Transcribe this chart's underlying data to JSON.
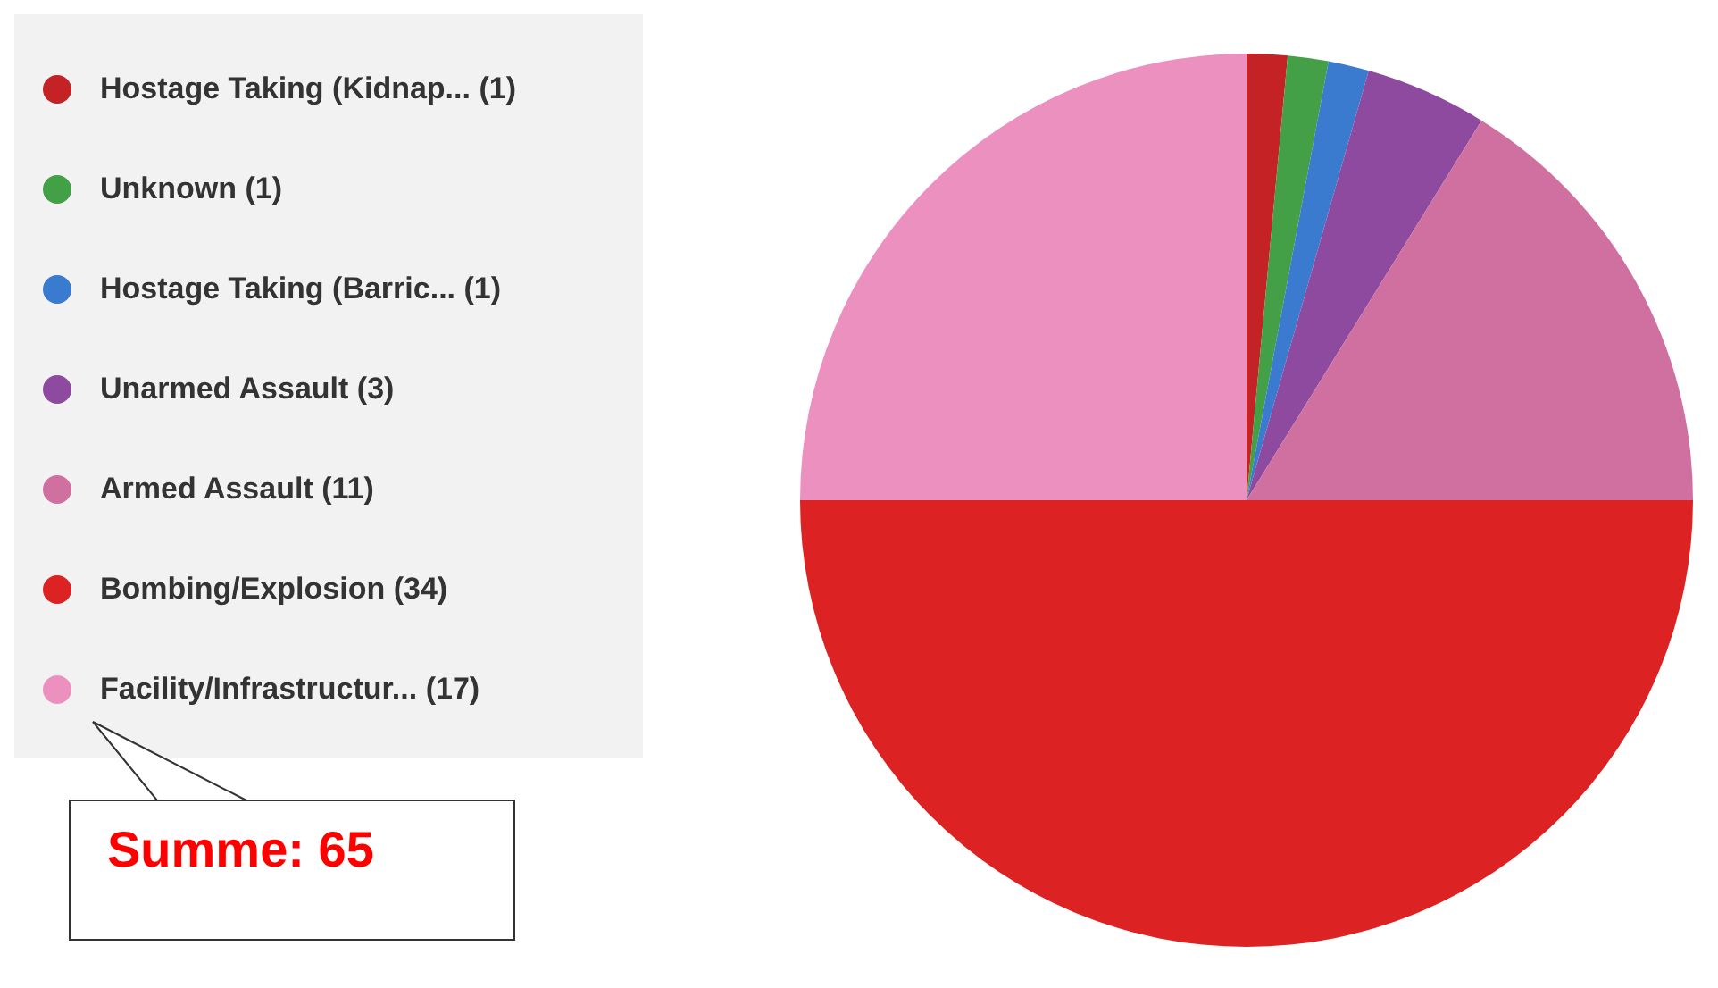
{
  "chart_data": {
    "type": "pie",
    "categories": [
      "Hostage Taking (Kidnap...",
      "Unknown",
      "Hostage Taking (Barric...",
      "Unarmed Assault",
      "Armed Assault",
      "Bombing/Explosion",
      "Facility/Infrastructur..."
    ],
    "values": [
      1,
      1,
      1,
      3,
      11,
      34,
      17
    ],
    "value_labels": [
      "(1)",
      "(1)",
      "(1)",
      "(3)",
      "(11)",
      "(34)",
      "(17)"
    ],
    "colors": [
      "#c42224",
      "#43a047",
      "#3a7bd0",
      "#8e4a9e",
      "#d070a0",
      "#dc2222",
      "#ec90c0"
    ],
    "legend": "left",
    "annotations": [
      "Summe: 65"
    ]
  }
}
